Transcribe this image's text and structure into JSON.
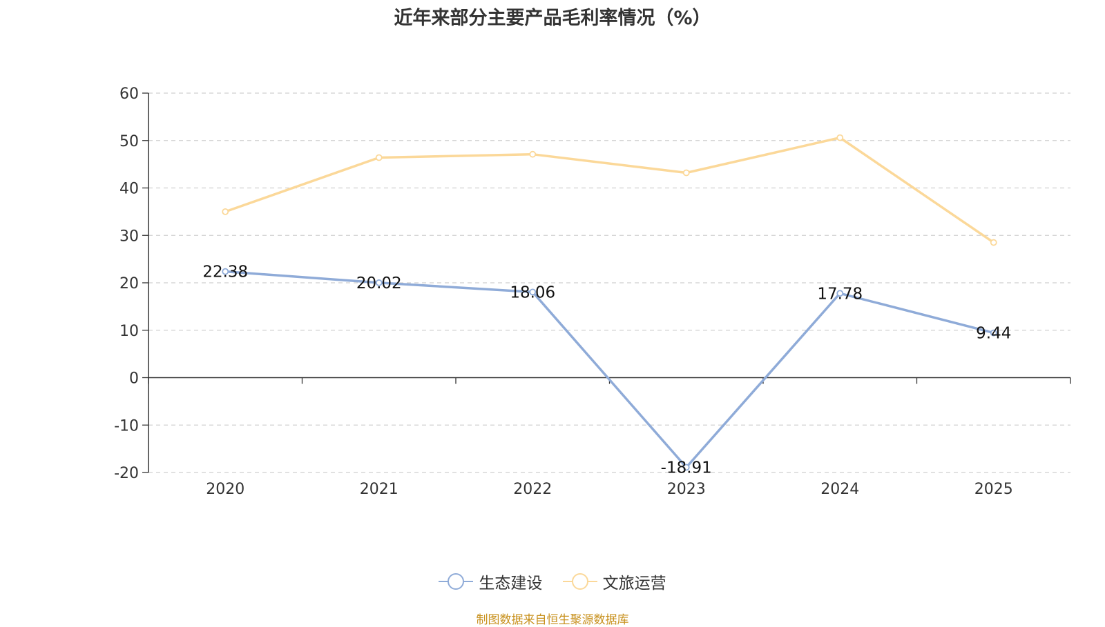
{
  "chart_data": {
    "type": "line",
    "title": "近年来部分主要产品毛利率情况（%）",
    "categories": [
      "2020",
      "2021",
      "2022",
      "2023",
      "2024",
      "2025"
    ],
    "series": [
      {
        "name": "生态建设",
        "color": "#8fabd8",
        "values": [
          22.38,
          20.02,
          18.06,
          -18.91,
          17.78,
          9.44
        ],
        "labels_shown": true
      },
      {
        "name": "文旅运营",
        "color": "#fbd899",
        "values": [
          35.0,
          46.4,
          47.1,
          43.2,
          50.6,
          28.5
        ],
        "labels_shown": false
      }
    ],
    "ylim": [
      -20,
      60
    ],
    "yticks": [
      -20,
      -10,
      0,
      10,
      20,
      30,
      40,
      50,
      60
    ],
    "grid": true,
    "legend_position": "bottom"
  },
  "source_note": "制图数据来自恒生聚源数据库"
}
